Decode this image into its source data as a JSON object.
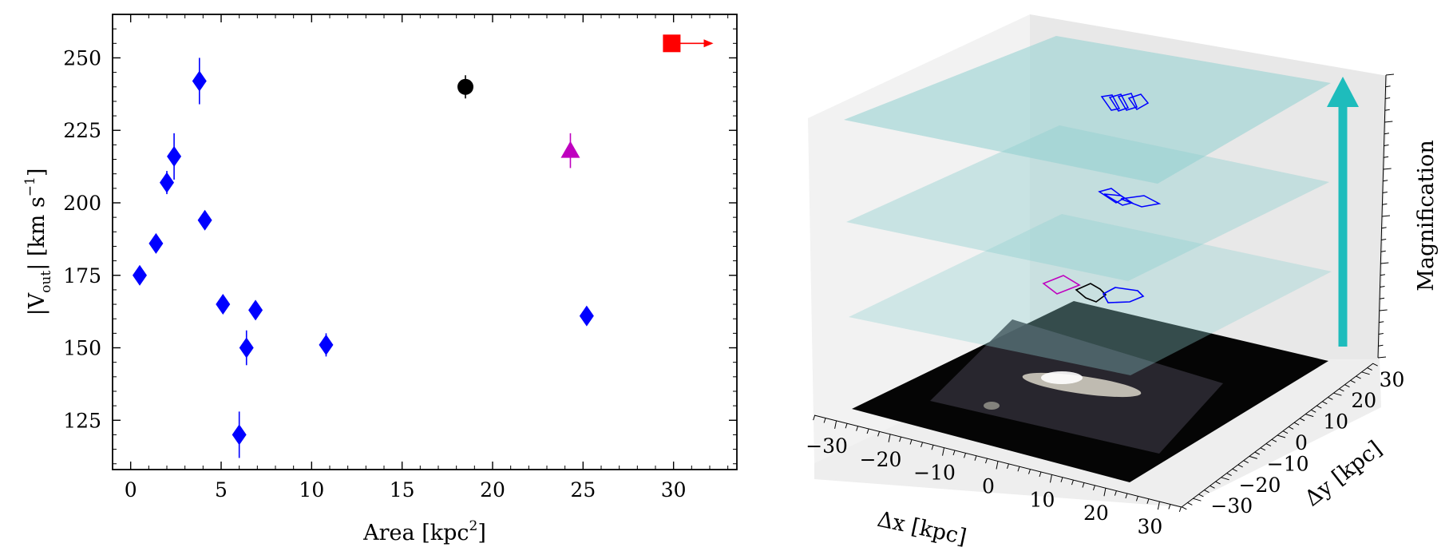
{
  "chart_data": [
    {
      "type": "scatter",
      "xlabel": "Area [kpc",
      "xlabel_sup": "2",
      "xlabel_end": "]",
      "ylabel": "|V",
      "ylabel_sub": "out",
      "ylabel_mid": "| [km s",
      "ylabel_sup": "−1",
      "ylabel_end": "]",
      "xlim": [
        -1,
        33.5
      ],
      "ylim": [
        108,
        265
      ],
      "xticks": [
        0,
        5,
        10,
        15,
        20,
        25,
        30
      ],
      "xtick_labels": [
        "0",
        "5",
        "10",
        "15",
        "20",
        "25",
        "30"
      ],
      "yticks": [
        125,
        150,
        175,
        200,
        225,
        250
      ],
      "ytick_labels": [
        "125",
        "150",
        "175",
        "200",
        "225",
        "250"
      ],
      "grid": false,
      "series": [
        {
          "marker": "diamond",
          "color": "#0000ff",
          "points": [
            {
              "x": 0.5,
              "y": 175,
              "err": 3
            },
            {
              "x": 1.4,
              "y": 186,
              "err": 3
            },
            {
              "x": 2.0,
              "y": 207,
              "err": 4
            },
            {
              "x": 2.4,
              "y": 216,
              "err": 8
            },
            {
              "x": 3.8,
              "y": 242,
              "err": 8
            },
            {
              "x": 4.1,
              "y": 194,
              "err": 3
            },
            {
              "x": 5.1,
              "y": 165,
              "err": 3
            },
            {
              "x": 6.0,
              "y": 120,
              "err": 8
            },
            {
              "x": 6.4,
              "y": 150,
              "err": 6
            },
            {
              "x": 6.9,
              "y": 163,
              "err": 3
            },
            {
              "x": 10.8,
              "y": 151,
              "err": 4
            },
            {
              "x": 25.2,
              "y": 161,
              "err": 3
            }
          ]
        },
        {
          "marker": "circle",
          "color": "#000000",
          "points": [
            {
              "x": 18.5,
              "y": 240,
              "err": 4
            }
          ]
        },
        {
          "marker": "triangle",
          "color": "#bf00bf",
          "points": [
            {
              "x": 24.3,
              "y": 218,
              "err": 6
            }
          ]
        },
        {
          "marker": "square",
          "color": "#ff0000",
          "points": [
            {
              "x": 29.9,
              "y": 255,
              "err": 0
            }
          ],
          "arrow_to_x": 32.2
        }
      ]
    },
    {
      "type": "3d-scatter",
      "xlabel": "Δx [kpc]",
      "ylabel": "Δy [kpc]",
      "zlabel": "Magnification",
      "xticks": [
        -30,
        -20,
        -10,
        0,
        10,
        20,
        30
      ],
      "xtick_labels": [
        "−30",
        "−20",
        "−10",
        "0",
        "10",
        "20",
        "30"
      ],
      "yticks": [
        -30,
        -20,
        -10,
        0,
        10,
        20,
        30
      ],
      "ytick_labels": [
        "−30",
        "−20",
        "−10",
        "0",
        "10",
        "20",
        "30"
      ],
      "plane_color": "#8fd0d0",
      "arrow_color": "#1ebcbc",
      "layers": [
        {
          "contours": [
            {
              "color": "#bf00bf"
            },
            {
              "color": "#000000"
            },
            {
              "color": "#0000ff"
            }
          ]
        },
        {
          "contours": [
            {
              "color": "#0000ff"
            },
            {
              "color": "#0000ff"
            },
            {
              "color": "#0000ff"
            }
          ]
        },
        {
          "contours": [
            {
              "color": "#0000ff"
            },
            {
              "color": "#0000ff"
            },
            {
              "color": "#0000ff"
            },
            {
              "color": "#0000ff"
            }
          ]
        }
      ]
    }
  ]
}
